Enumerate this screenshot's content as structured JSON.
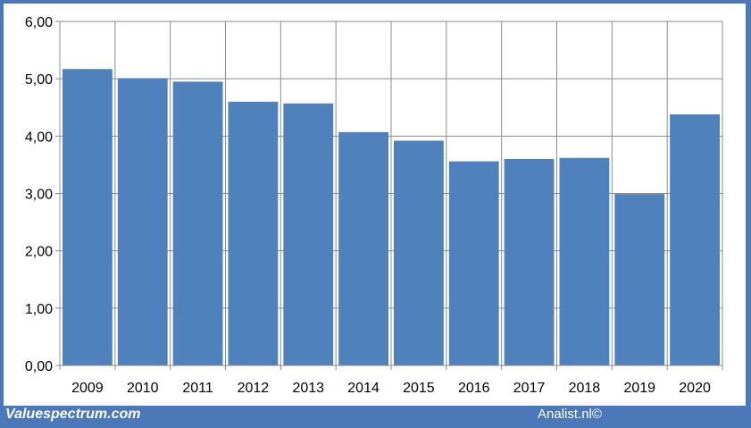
{
  "chart_data": {
    "type": "bar",
    "categories": [
      "2009",
      "2010",
      "2011",
      "2012",
      "2013",
      "2014",
      "2015",
      "2016",
      "2017",
      "2018",
      "2019",
      "2020"
    ],
    "values": [
      5.17,
      5.01,
      4.95,
      4.6,
      4.57,
      4.07,
      3.92,
      3.56,
      3.6,
      3.62,
      2.99,
      4.38
    ],
    "title": "",
    "xlabel": "",
    "ylabel": "",
    "ylim": [
      0,
      6
    ],
    "yticks": [
      "0,00",
      "1,00",
      "2,00",
      "3,00",
      "4,00",
      "5,00",
      "6,00"
    ],
    "grid": true,
    "bar_color": "#4f81bd"
  },
  "footer": {
    "source_left": "Valuespectrum.com",
    "source_right": "Analist.nl©"
  }
}
